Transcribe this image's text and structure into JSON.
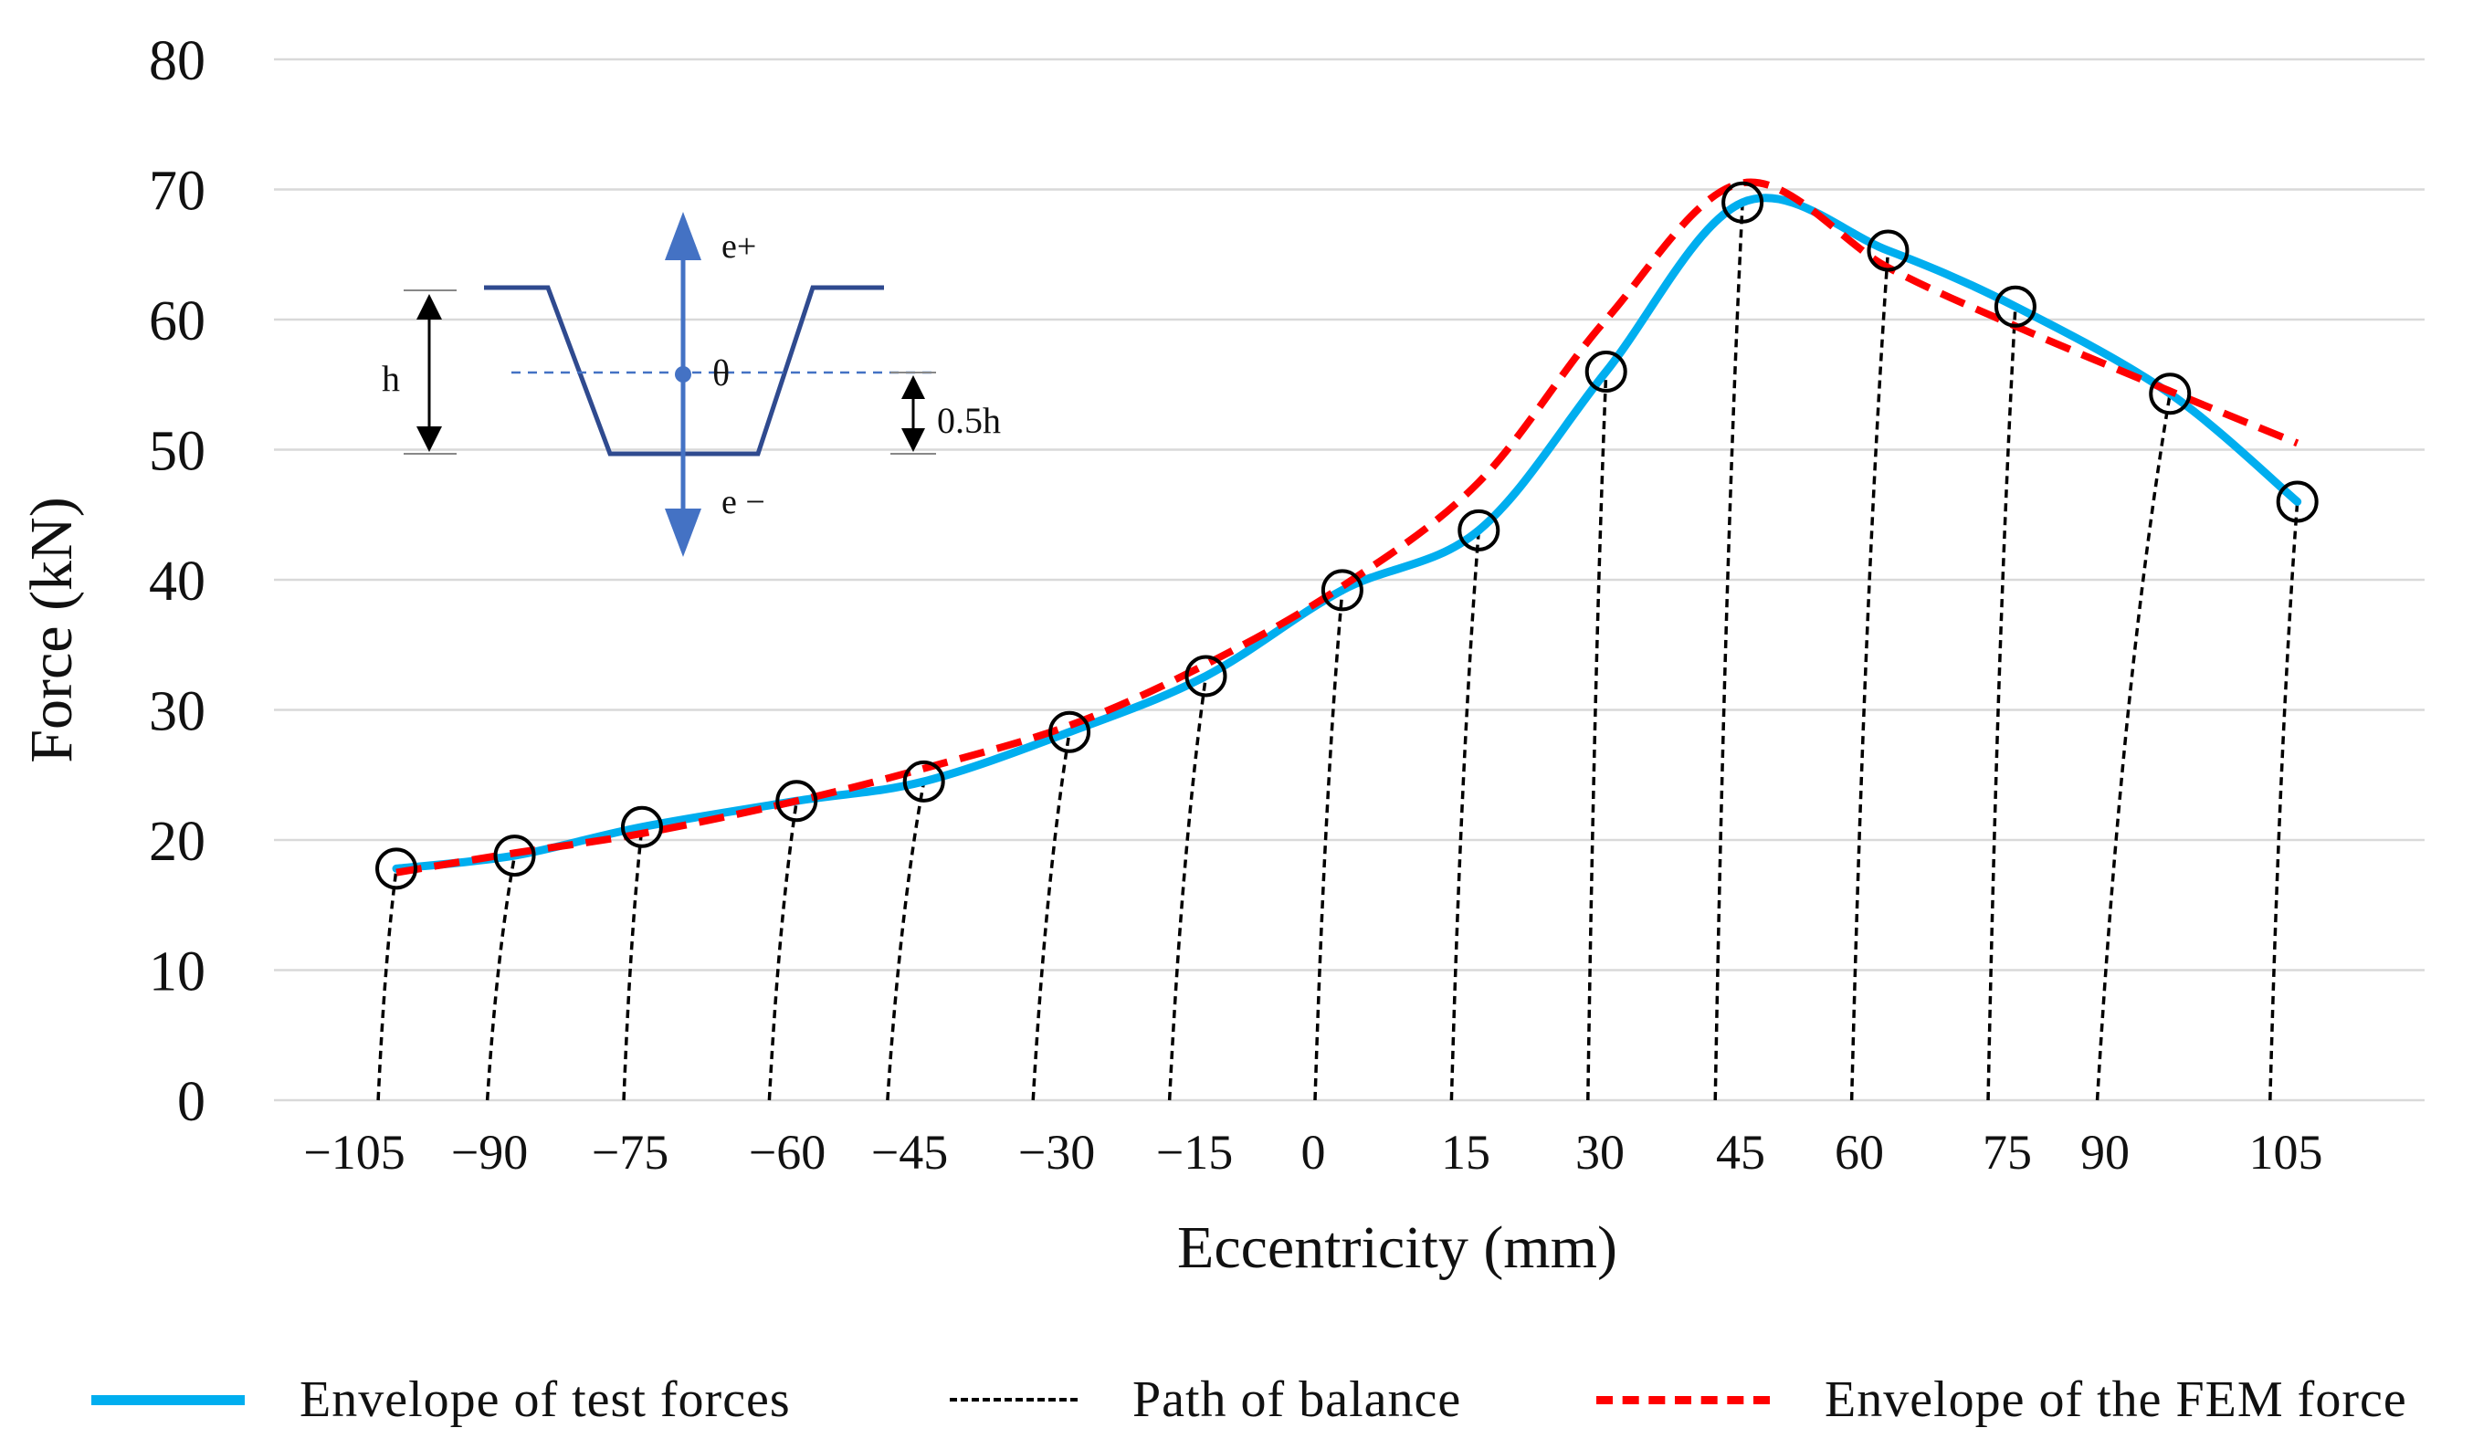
{
  "chart_data": {
    "type": "line",
    "title": "",
    "xlabel": "Eccentricity (mm)",
    "ylabel": "Force (kN)",
    "ylim": [
      0,
      80
    ],
    "yticks": [
      0,
      10,
      20,
      30,
      40,
      50,
      60,
      70,
      80
    ],
    "x_tick_labels": [
      "−105",
      "−90",
      "−75",
      "−60",
      "−45",
      "−30",
      "−15",
      "0",
      "15",
      "30",
      "45",
      "60",
      "75",
      "90",
      "105"
    ],
    "grid": true,
    "legend_position": "bottom",
    "series": [
      {
        "name": "Envelope of test forces",
        "style": "solid",
        "color": "#00AEEF",
        "points": [
          {
            "x": -101,
            "y": 17.8
          },
          {
            "x": -88,
            "y": 18.8
          },
          {
            "x": -74,
            "y": 21.0
          },
          {
            "x": -57,
            "y": 23.0
          },
          {
            "x": -43,
            "y": 24.5
          },
          {
            "x": -27,
            "y": 28.3
          },
          {
            "x": -12,
            "y": 32.6
          },
          {
            "x": 3,
            "y": 39.2
          },
          {
            "x": 18,
            "y": 43.8
          },
          {
            "x": 32,
            "y": 56.0
          },
          {
            "x": 47,
            "y": 69.0
          },
          {
            "x": 63,
            "y": 65.3
          },
          {
            "x": 77,
            "y": 61.0
          },
          {
            "x": 94,
            "y": 54.3
          },
          {
            "x": 108,
            "y": 46.0
          }
        ]
      },
      {
        "name": "Envelope of the FEM force",
        "style": "dashed",
        "color": "#FF0000",
        "points": [
          {
            "x": -101,
            "y": 17.5
          },
          {
            "x": -88,
            "y": 19.0
          },
          {
            "x": -74,
            "y": 20.5
          },
          {
            "x": -57,
            "y": 23.0
          },
          {
            "x": -43,
            "y": 25.5
          },
          {
            "x": -27,
            "y": 28.8
          },
          {
            "x": -12,
            "y": 33.5
          },
          {
            "x": 3,
            "y": 39.5
          },
          {
            "x": 18,
            "y": 47.5
          },
          {
            "x": 32,
            "y": 60.0
          },
          {
            "x": 47,
            "y": 70.5
          },
          {
            "x": 63,
            "y": 64.0
          },
          {
            "x": 77,
            "y": 59.5
          },
          {
            "x": 94,
            "y": 54.5
          },
          {
            "x": 108,
            "y": 50.5
          }
        ]
      },
      {
        "name": "Path of balance",
        "style": "dotted",
        "color": "#000000",
        "paths": [
          {
            "x0": -103,
            "x_top": -101,
            "y_top": 17.8
          },
          {
            "x0": -91,
            "x_top": -88,
            "y_top": 18.8
          },
          {
            "x0": -76,
            "x_top": -74,
            "y_top": 21.0
          },
          {
            "x0": -60,
            "x_top": -57,
            "y_top": 23.0
          },
          {
            "x0": -47,
            "x_top": -43,
            "y_top": 24.5
          },
          {
            "x0": -31,
            "x_top": -27,
            "y_top": 28.3
          },
          {
            "x0": -16,
            "x_top": -12,
            "y_top": 32.6
          },
          {
            "x0": 0,
            "x_top": 3,
            "y_top": 39.2
          },
          {
            "x0": 15,
            "x_top": 18,
            "y_top": 43.8
          },
          {
            "x0": 30,
            "x_top": 32,
            "y_top": 56.0
          },
          {
            "x0": 44,
            "x_top": 47,
            "y_top": 69.0
          },
          {
            "x0": 59,
            "x_top": 63,
            "y_top": 65.3
          },
          {
            "x0": 74,
            "x_top": 77,
            "y_top": 61.0
          },
          {
            "x0": 86,
            "x_top": 94,
            "y_top": 54.3
          },
          {
            "x0": 105,
            "x_top": 108,
            "y_top": 46.0
          }
        ]
      }
    ],
    "markers": "open circles at test points",
    "inset": {
      "labels": {
        "e_plus": "e+",
        "e_minus": "e −",
        "theta": "θ",
        "h": "h",
        "half_h": "0.5h"
      }
    }
  },
  "legend": {
    "items": [
      {
        "label": "Envelope of test forces",
        "color": "#00AEEF",
        "style": "solid"
      },
      {
        "label": "Path of balance",
        "color": "#000000",
        "style": "dotted"
      },
      {
        "label": "Envelope of the FEM force",
        "color": "#FF0000",
        "style": "dashed"
      }
    ]
  }
}
